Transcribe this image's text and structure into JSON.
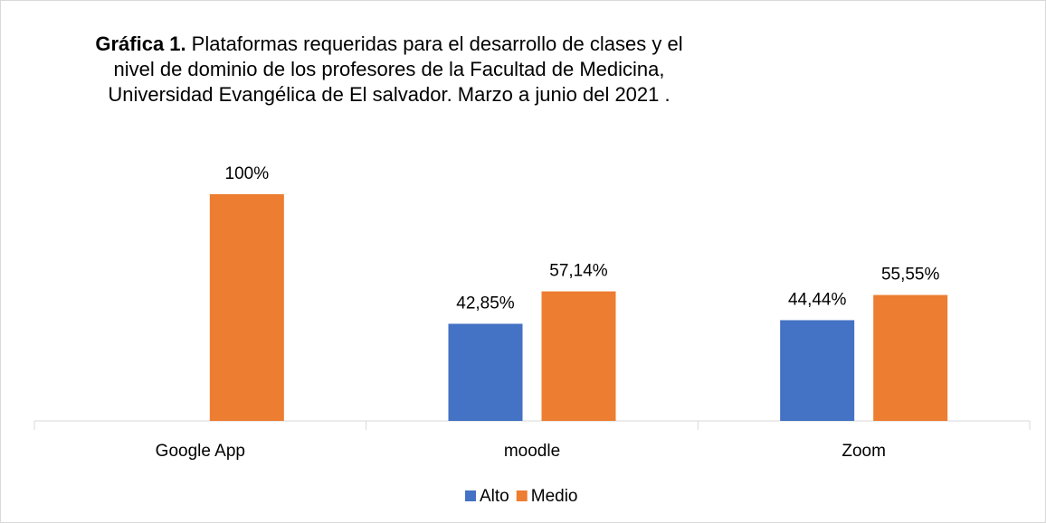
{
  "chart_data": {
    "type": "bar",
    "title_bold": "Gráfica 1.",
    "title": [
      "Plataformas requeridas para el desarrollo de clases y el",
      "nivel de dominio de los profesores de la Facultad de Medicina,",
      "Universidad  Evangélica de El salvador. Marzo a junio del 2021 ."
    ],
    "categories": [
      "Google App",
      "moodle",
      "Zoom"
    ],
    "series": [
      {
        "name": "Alto",
        "color": "#4472c4",
        "values": [
          null,
          42.85,
          44.44
        ],
        "value_labels": [
          null,
          "42,85%",
          "44,44%"
        ]
      },
      {
        "name": "Medio",
        "color": "#ed7d31",
        "values": [
          100,
          57.14,
          55.55
        ],
        "value_labels": [
          "100%",
          "57,14%",
          "55,55%"
        ]
      }
    ],
    "ylim": [
      0,
      100
    ],
    "legend": "bottom"
  }
}
